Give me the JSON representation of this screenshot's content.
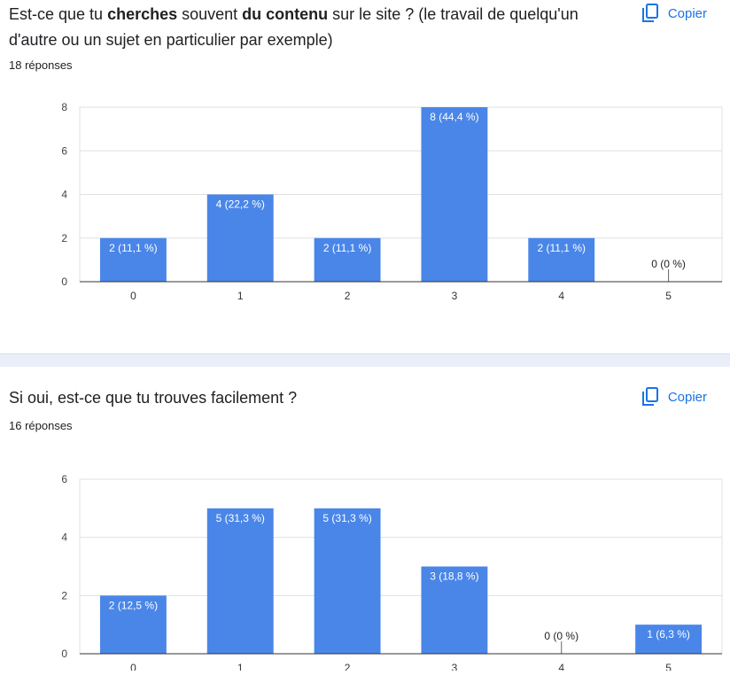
{
  "questions": [
    {
      "title_parts": [
        {
          "text": "Est-ce que tu ",
          "bold": false
        },
        {
          "text": "cherches",
          "bold": true
        },
        {
          "text": " souvent ",
          "bold": false
        },
        {
          "text": "du contenu",
          "bold": true
        },
        {
          "text": " sur le site ? (le travail de quelqu'un d'autre ou un sujet en particulier par exemple)",
          "bold": false
        }
      ],
      "responses": "18 réponses",
      "copy_label": "Copier"
    },
    {
      "title_parts": [
        {
          "text": "Si oui, est-ce que tu trouves facilement ?",
          "bold": false
        }
      ],
      "responses": "16 réponses",
      "copy_label": "Copier"
    }
  ],
  "colors": {
    "bar": "#4a86e8",
    "accent": "#1a73e8",
    "grid": "#e0e0e0",
    "axis": "#333333"
  },
  "chart_data": [
    {
      "type": "bar",
      "categories": [
        "0",
        "1",
        "2",
        "3",
        "4",
        "5"
      ],
      "values": [
        2,
        4,
        2,
        8,
        2,
        0
      ],
      "labels": [
        "2 (11,1 %)",
        "4 (22,2 %)",
        "2 (11,1 %)",
        "8 (44,4 %)",
        "2 (11,1 %)",
        "0 (0 %)"
      ],
      "yticks": [
        "0",
        "2",
        "4",
        "6",
        "8"
      ],
      "ylim": [
        0,
        8
      ],
      "title": "",
      "xlabel": "",
      "ylabel": ""
    },
    {
      "type": "bar",
      "categories": [
        "0",
        "1",
        "2",
        "3",
        "4",
        "5"
      ],
      "values": [
        2,
        5,
        5,
        3,
        0,
        1
      ],
      "labels": [
        "2 (12,5 %)",
        "5 (31,3 %)",
        "5 (31,3 %)",
        "3 (18,8 %)",
        "0 (0 %)",
        "1 (6,3 %)"
      ],
      "yticks": [
        "0",
        "2",
        "4",
        "6"
      ],
      "ylim": [
        0,
        6
      ],
      "title": "",
      "xlabel": "",
      "ylabel": ""
    }
  ]
}
